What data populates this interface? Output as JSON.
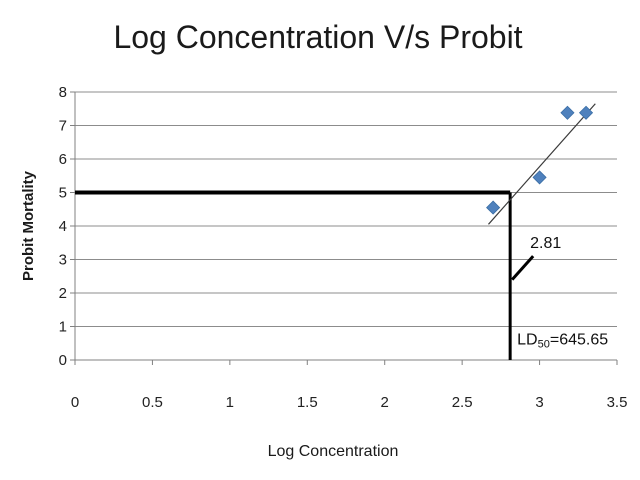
{
  "chart_data": {
    "type": "scatter",
    "title": "Log Concentration V/s Probit",
    "xlabel": "Log Concentration",
    "ylabel": "Probit Mortality",
    "xlim": [
      0,
      3.5
    ],
    "ylim": [
      0,
      8
    ],
    "x_ticks": [
      "0",
      "0.5",
      "1",
      "1.5",
      "2",
      "2.5",
      "3",
      "3.5"
    ],
    "y_ticks": [
      "0",
      "1",
      "2",
      "3",
      "4",
      "5",
      "6",
      "7",
      "8"
    ],
    "grid": "horizontal",
    "marker_color": "#4f81bd",
    "series": [
      {
        "marker": "diamond",
        "points": [
          {
            "x": 2.7,
            "y": 4.55
          },
          {
            "x": 3.0,
            "y": 5.45
          },
          {
            "x": 3.18,
            "y": 7.38
          },
          {
            "x": 3.3,
            "y": 7.38
          }
        ]
      }
    ],
    "trendline": {
      "x": [
        2.67,
        3.36
      ],
      "y": [
        4.05,
        7.65
      ]
    },
    "reference_lines": {
      "horizontal_y": 5,
      "horizontal_x_range": [
        0,
        2.81
      ],
      "vertical_x": 2.81,
      "vertical_y_range": [
        0,
        5
      ]
    },
    "annotations": {
      "x_intercept_label": "2.81",
      "ld50_prefix": "LD",
      "ld50_sub": "50",
      "ld50_value": "=645.65"
    }
  }
}
